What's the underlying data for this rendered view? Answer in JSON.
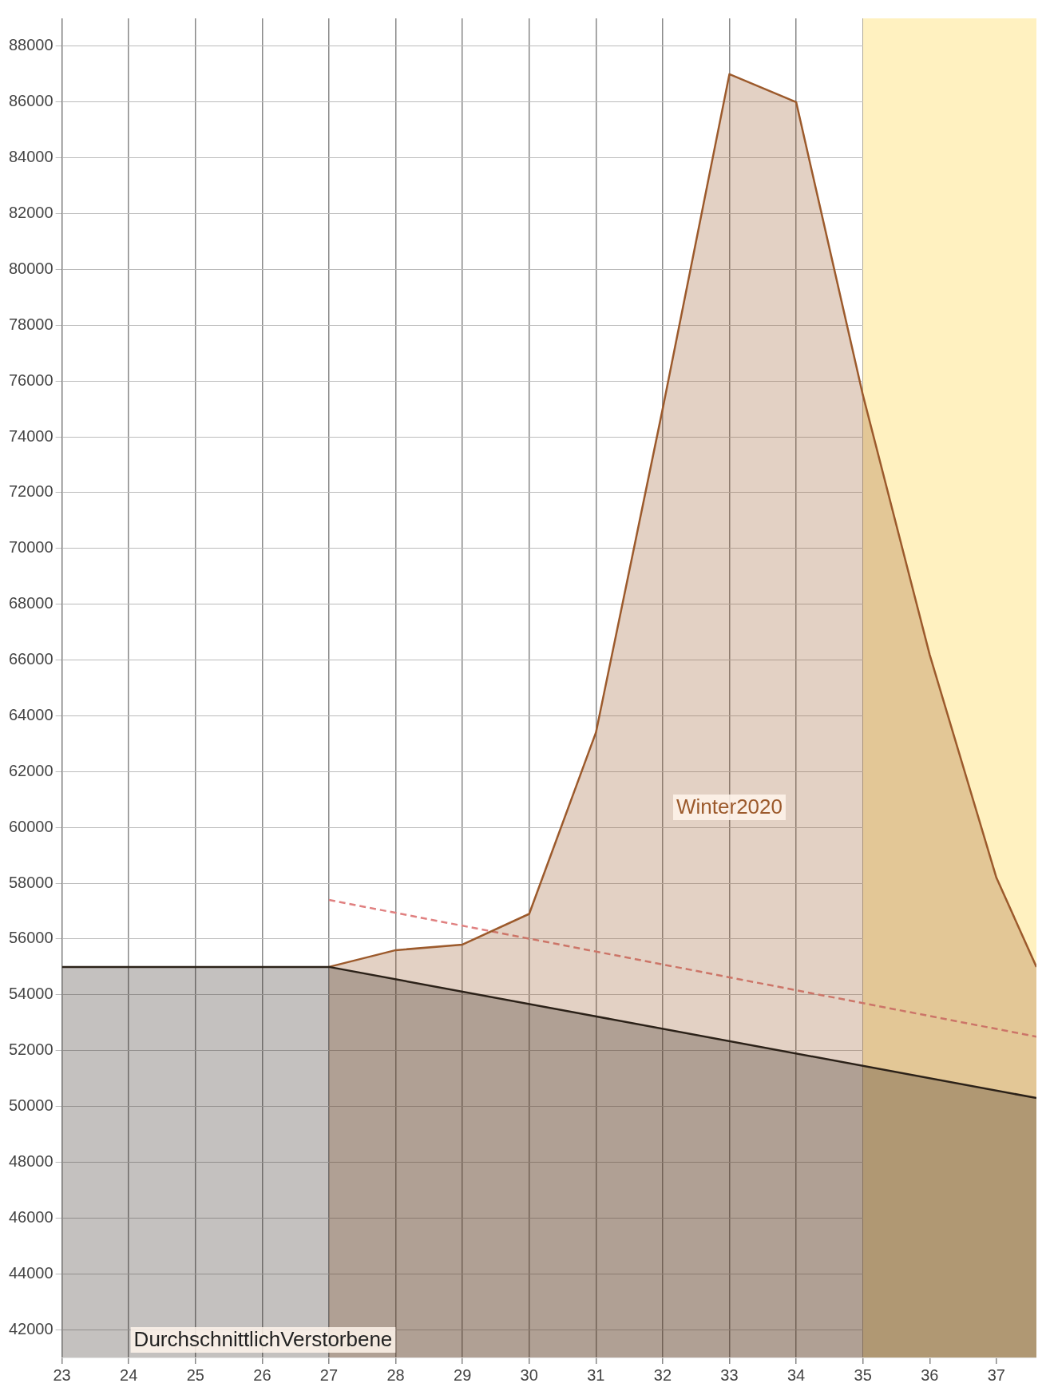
{
  "chart_data": {
    "type": "line",
    "xlim": [
      23,
      37.6
    ],
    "xticks": [
      23,
      24,
      25,
      26,
      27,
      28,
      29,
      30,
      31,
      32,
      33,
      34,
      35,
      36,
      37
    ],
    "ylim": [
      41000,
      89000
    ],
    "yticks": [
      42000,
      44000,
      46000,
      48000,
      50000,
      52000,
      54000,
      56000,
      58000,
      60000,
      62000,
      64000,
      66000,
      68000,
      70000,
      72000,
      74000,
      76000,
      78000,
      80000,
      82000,
      84000,
      86000,
      88000
    ],
    "grid": true,
    "legend": false,
    "marker": "none",
    "series": [
      {
        "name": "DurchschnittlichVerstorbene",
        "type": "area",
        "color": "#2b2118",
        "x": [
          23,
          27,
          37.6
        ],
        "values": [
          55000,
          55000,
          50300
        ]
      },
      {
        "name": "Winter2020",
        "type": "area",
        "color": "#9c5a2c",
        "x": [
          27,
          28,
          29,
          30,
          31,
          32,
          33,
          34,
          35,
          36,
          37,
          37.6
        ],
        "values": [
          55000,
          55600,
          55800,
          56900,
          63400,
          75000,
          87000,
          86000,
          75500,
          66200,
          58200,
          55000
        ]
      },
      {
        "type": "line",
        "color": "#e08080",
        "line_style": "dashed",
        "x": [
          27,
          37.6
        ],
        "values": [
          57400,
          52500
        ]
      }
    ],
    "bands": [
      {
        "axis": "x",
        "from": 35,
        "to": 37.6,
        "color": "#fff1c0"
      }
    ]
  }
}
